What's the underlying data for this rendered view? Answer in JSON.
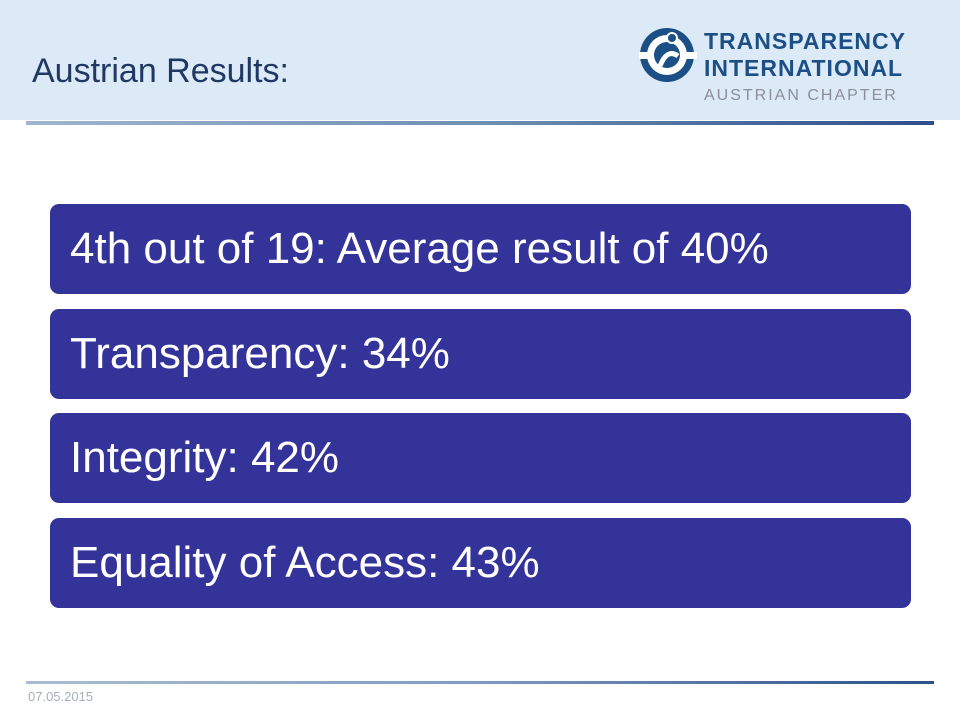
{
  "header": {
    "title": "Austrian Results:"
  },
  "logo": {
    "line1": "TRANSPARENCY",
    "line2": "INTERNATIONAL",
    "line3": "AUSTRIAN CHAPTER",
    "icon": "globe-person-icon"
  },
  "results": [
    {
      "text": "4th out of 19: Average result of 40%"
    },
    {
      "text": "Transparency: 34%"
    },
    {
      "text": "Integrity: 42%"
    },
    {
      "text": "Equality of Access: 43%"
    }
  ],
  "footer": {
    "date": "07.05.2015"
  },
  "colors": {
    "header_band": "#dce9f6",
    "title": "#1f3864",
    "box_fill": "#333399",
    "box_text": "#ffffff",
    "logo_blue": "#1b4f86",
    "logo_grey": "#8a8f99",
    "footer_text": "#a6aebc"
  }
}
